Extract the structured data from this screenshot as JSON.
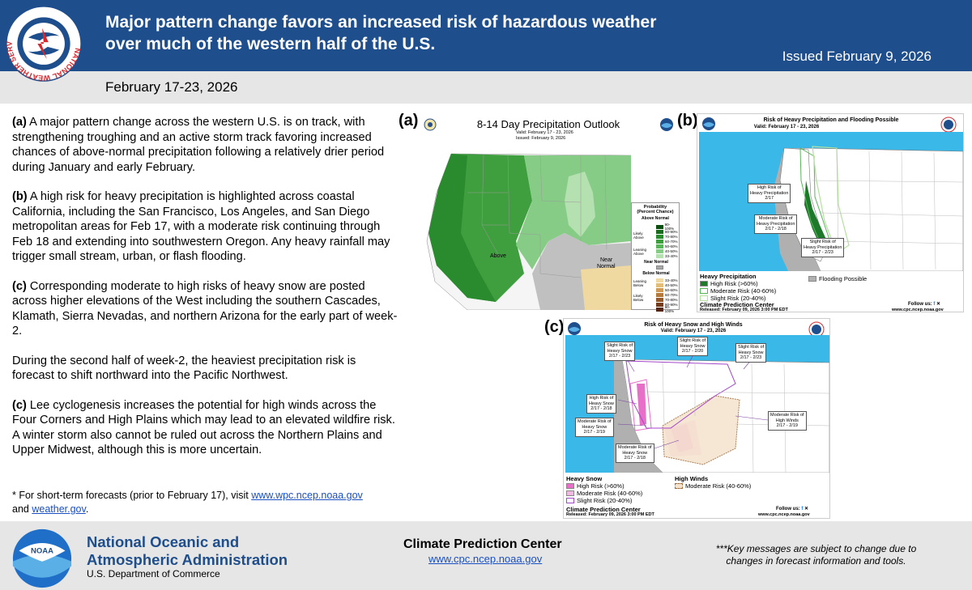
{
  "header": {
    "title": "Major pattern change favors an increased risk of hazardous weather over much of the western half of the U.S.",
    "issued": "Issued February 9, 2026",
    "dates": "February 17-23, 2026"
  },
  "body": {
    "p1_tag": "(a)",
    "p1_text": " A major pattern change across the western U.S. is on track, with strengthening troughing and an active storm track favoring increased chances of above-normal precipitation following a relatively drier period during January and early February.",
    "p2_tag": "(b)",
    "p2_text": " A high risk for heavy precipitation is highlighted across coastal California, including the San Francisco, Los Angeles, and San Diego metropolitan areas for Feb 17, with a moderate risk continuing through Feb 18 and extending into southwestern Oregon. Any heavy rainfall may trigger small stream, urban, or flash flooding.",
    "p3_tag": "(c)",
    "p3_text": " Corresponding moderate to high risks of heavy snow are posted across higher elevations of the West including the southern Cascades, Klamath, Sierra Nevadas, and northern Arizona for the early part of week-2.",
    "p4_text": "During the second half of week-2, the heaviest precipitation risk is forecast to shift northward into the Pacific Northwest.",
    "p5_tag": "(c)",
    "p5_text": " Lee cyclogenesis increases the potential for high winds across the Four Corners and High Plains which may lead to an elevated wildfire risk. A winter storm also cannot be ruled out across the Northern Plains and Upper Midwest, although this is more uncertain."
  },
  "footnote": {
    "prefix": "* For short-term forecasts (prior to February 17), visit ",
    "link1": "www.wpc.ncep.noaa.gov",
    "mid": " and ",
    "link2": "weather.gov",
    "suffix": "."
  },
  "footer": {
    "noaa_line1": "National Oceanic and",
    "noaa_line2": "Atmospheric Administration",
    "dept": "U.S. Department of Commerce",
    "cpc_name": "Climate Prediction Center",
    "cpc_url": "www.cpc.ncep.noaa.gov",
    "disclaimer": "***Key messages are subject to change due to changes in forecast information and tools."
  },
  "logos": {
    "nws_text": "NATIONAL WEATHER SERVICE",
    "noaa_text": "NOAA"
  },
  "panel_a": {
    "label": "(a)",
    "title": "8-14 Day Precipitation Outlook",
    "valid": "Valid:  February 17 - 23, 2026",
    "issued": "Issued:  February 9, 2026",
    "map_above": "Above",
    "map_near": "Near\nNormal",
    "legend_title": "Probability\n(Percent Chance)",
    "legend_above": "Above Normal",
    "legend_near": "Near Normal",
    "legend_below": "Below Normal",
    "side_likely_above": "Likely\nAbove",
    "side_leaning_above": "Leaning\nAbove",
    "side_leaning_below": "Leaning\nBelow",
    "side_likely_below": "Likely\nBelow",
    "above_levels": [
      "90-100%",
      "80-90%",
      "70-80%",
      "60-70%",
      "50-60%",
      "40-50%",
      "33-40%"
    ],
    "below_levels": [
      "33-40%",
      "40-50%",
      "50-60%",
      "60-70%",
      "70-80%",
      "80-90%",
      "90-100%"
    ],
    "above_colors": [
      "#0b4f10",
      "#1a6b1e",
      "#2a8a2e",
      "#3f9f3f",
      "#5ab55a",
      "#86cc86",
      "#b5e0b0"
    ],
    "below_colors": [
      "#f0d9a0",
      "#e2bd78",
      "#cf9a55",
      "#b37a3c",
      "#93592a",
      "#733d1c",
      "#542510"
    ],
    "near_color": "#a8a8a8"
  },
  "panel_b": {
    "label": "(b)",
    "title": "Risk of Heavy Precipitation and Flooding Possible",
    "valid": "Valid: February 17 - 23, 2026",
    "ann_high": "High Risk of\nHeavy Precipitation\n2/17",
    "ann_mod": "Moderate Risk of\nHeavy Precipitation\n2/17 - 2/18",
    "ann_slight": "Slight Risk of\nHeavy Precipitation\n2/17 - 2/23",
    "legend_title": "Heavy Precipitation",
    "legend_high": "High Risk (>60%)",
    "legend_mod": "Moderate Risk (40-60%)",
    "legend_slight": "Slight Risk (20-40%)",
    "legend_flood": "Flooding Possible",
    "footer_title": "Climate Prediction Center",
    "released": "Released: February 09, 2026 3:00 PM EDT",
    "follow": "Follow us:",
    "url": "www.cpc.ncep.noaa.gov",
    "high_color": "#1e7a2a",
    "mod_color": "#b9e3a7",
    "slight_color": "#d9f0c0",
    "flood_color": "#b0b0b0"
  },
  "panel_c": {
    "label": "(c)",
    "title": "Risk of Heavy Snow and High Winds",
    "valid": "Valid: February 17 - 23, 2026",
    "ann1": "Slight Risk of\nHeavy Snow\n2/17 - 2/23",
    "ann2": "Slight Risk of\nHeavy Snow\n2/17 - 2/20",
    "ann3": "Slight Risk of\nHeavy Snow\n2/17 - 2/23",
    "ann4": "High Risk of\nHeavy Snow\n2/17 - 2/18",
    "ann5": "Moderate Risk of\nHeavy Snow\n2/17 - 2/19",
    "ann6": "Moderate Risk of\nHeavy Snow\n2/17 - 2/18",
    "ann7": "Moderate Risk of\nHigh Winds\n2/17 - 2/19",
    "legend_snow_title": "Heavy Snow",
    "legend_snow_high": "High Risk (>60%)",
    "legend_snow_mod": "Moderate Risk (40-60%)",
    "legend_snow_slight": "Slight Risk (20-40%)",
    "legend_wind_title": "High Winds",
    "legend_wind_mod": "Moderate Risk (40-60%)",
    "footer_title": "Climate Prediction Center",
    "released": "Released: February 09, 2026 3:00 PM EDT",
    "follow": "Follow us:",
    "url": "www.cpc.ncep.noaa.gov",
    "snow_high_color": "#e86fc8",
    "snow_mod_color": "#f3b8e0",
    "snow_slight_color": "#a347c9",
    "wind_color": "#c89c6a"
  }
}
